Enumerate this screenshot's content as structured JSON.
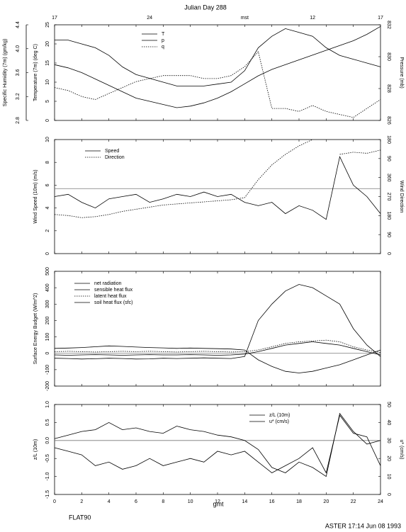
{
  "footer": {
    "left": "FLAT90",
    "right": "ASTER 17:14 Jun 08 1993"
  },
  "chart_data": [
    {
      "type": "line",
      "title": "Julian Day 288",
      "top_xticks": [
        {
          "value": 0,
          "label": "17"
        },
        {
          "value": 7,
          "label": "24"
        },
        {
          "value": 14,
          "label": "mst"
        },
        {
          "value": 19,
          "label": "12"
        },
        {
          "value": 24,
          "label": "17"
        }
      ],
      "xlim": [
        0,
        24
      ],
      "ylabel": "Temperature (7m) (deg C)",
      "ylim": [
        0,
        25
      ],
      "yticks": [
        0,
        5,
        10,
        15,
        20,
        25
      ],
      "y3label": "Specific Humidity (7m) (gm/kg)",
      "y3lim": [
        2.8,
        4.4
      ],
      "y3ticks": [
        2.8,
        3.2,
        3.6,
        {
          "value": 4,
          "label": "4.0"
        },
        4.4
      ],
      "y2label": "Pressure (mb)",
      "y2lim": [
        826,
        832
      ],
      "y2ticks": [
        826,
        828,
        830,
        832
      ],
      "x": [
        0,
        1,
        2,
        3,
        4,
        5,
        6,
        7,
        8,
        9,
        10,
        11,
        12,
        13,
        14,
        15,
        16,
        17,
        18,
        19,
        20,
        21,
        22,
        23,
        24
      ],
      "series": [
        {
          "name": "T",
          "color": "#000",
          "dash": "solid",
          "axis": "y",
          "values": [
            21,
            21,
            20,
            19,
            17,
            14,
            12,
            11,
            10,
            9,
            9,
            9,
            9.5,
            10,
            13,
            19,
            22,
            24,
            23,
            22,
            19,
            17,
            16,
            15,
            14
          ]
        },
        {
          "name": "p",
          "color": "#000",
          "dash": "solid",
          "axis": "y2",
          "values": [
            829.5,
            829.3,
            829,
            828.6,
            828.2,
            827.8,
            827.4,
            827.2,
            827,
            826.8,
            826.9,
            827.1,
            827.4,
            827.8,
            828.3,
            828.8,
            829.2,
            829.5,
            829.8,
            830.1,
            830.4,
            830.7,
            831,
            831.4,
            831.9
          ]
        },
        {
          "name": "q",
          "color": "#000",
          "dash": "dotted",
          "axis": "y3",
          "values": [
            3.35,
            3.3,
            3.2,
            3.15,
            3.25,
            3.35,
            3.45,
            3.5,
            3.55,
            3.55,
            3.55,
            3.5,
            3.5,
            3.55,
            3.7,
            3.95,
            3,
            3,
            2.95,
            3.05,
            2.95,
            2.9,
            2.85,
            3,
            3.15
          ]
        }
      ]
    },
    {
      "type": "line",
      "xlim": [
        0,
        24
      ],
      "ylabel": "Wind Speed (10m) (m/s)",
      "ylim": [
        0,
        10
      ],
      "yticks": [
        0,
        2,
        4,
        6,
        8,
        10
      ],
      "y2label": "Wind Direction",
      "y2lim": [
        0,
        540
      ],
      "y2ticks": [
        0,
        90,
        180,
        270,
        360,
        {
          "value": 450,
          "label": "90"
        },
        {
          "value": 540,
          "label": "180"
        }
      ],
      "hline": 5.7,
      "x": [
        0,
        1,
        2,
        3,
        4,
        5,
        6,
        7,
        8,
        9,
        10,
        11,
        12,
        13,
        14,
        15,
        16,
        17,
        18,
        19,
        20,
        21,
        22,
        23,
        24
      ],
      "series": [
        {
          "name": "Speed",
          "color": "#000",
          "dash": "solid",
          "axis": "y",
          "values": [
            5,
            5.2,
            4.5,
            4,
            4.8,
            5,
            5.2,
            4.5,
            4.8,
            5.2,
            5,
            5.4,
            5,
            5.2,
            4.5,
            4.2,
            4.5,
            3.5,
            4.2,
            3.8,
            3,
            8.5,
            6,
            5,
            3.5
          ]
        },
        {
          "name": "Direction",
          "color": "#000",
          "dash": "dotted",
          "axis": "y2",
          "values": [
            185,
            180,
            170,
            175,
            185,
            200,
            210,
            220,
            230,
            235,
            240,
            245,
            250,
            255,
            265,
            350,
            420,
            470,
            510,
            540,
            null,
            470,
            480,
            475,
            490
          ]
        }
      ]
    },
    {
      "type": "line",
      "xlim": [
        0,
        24
      ],
      "ylabel": "Surface Energy Budget (W/m^2)",
      "ylim": [
        -200,
        500
      ],
      "yticks": [
        -200,
        -100,
        0,
        100,
        200,
        300,
        400,
        500
      ],
      "hline": 0,
      "x": [
        0,
        1,
        2,
        3,
        4,
        5,
        6,
        7,
        8,
        9,
        10,
        11,
        12,
        13,
        14,
        15,
        16,
        17,
        18,
        19,
        20,
        21,
        22,
        23,
        24
      ],
      "series": [
        {
          "name": "net radiation",
          "color": "#000",
          "dash": "solid",
          "axis": "y",
          "values": [
            -30,
            -32,
            -35,
            -33,
            -30,
            -32,
            -35,
            -34,
            -30,
            -32,
            -30,
            -28,
            -30,
            -32,
            -20,
            200,
            300,
            380,
            420,
            400,
            350,
            300,
            150,
            50,
            -20
          ]
        },
        {
          "name": "sensible heat flux",
          "color": "#000",
          "dash": "solid",
          "axis": "y",
          "values": [
            -10,
            -12,
            -10,
            -8,
            -10,
            -12,
            -10,
            -8,
            -10,
            -10,
            -8,
            -10,
            -12,
            -10,
            -5,
            10,
            30,
            50,
            60,
            70,
            60,
            50,
            30,
            10,
            -10
          ]
        },
        {
          "name": "latent heat flux",
          "color": "#000",
          "dash": "dotted",
          "axis": "y",
          "values": [
            10,
            12,
            10,
            8,
            10,
            12,
            10,
            12,
            10,
            8,
            10,
            12,
            10,
            8,
            10,
            20,
            40,
            60,
            70,
            75,
            80,
            70,
            40,
            20,
            5
          ]
        },
        {
          "name": "soil heat flux (sfc)",
          "color": "#000",
          "dash": "solid",
          "axis": "y",
          "values": [
            30,
            32,
            35,
            40,
            45,
            42,
            38,
            35,
            33,
            30,
            32,
            30,
            28,
            26,
            20,
            -40,
            -80,
            -110,
            -120,
            -110,
            -90,
            -70,
            -40,
            -10,
            20
          ]
        }
      ]
    },
    {
      "type": "line",
      "xlim": [
        0,
        24
      ],
      "xlabel": "gmt",
      "xticks": [
        0,
        2,
        4,
        6,
        8,
        10,
        12,
        14,
        16,
        18,
        20,
        22,
        24
      ],
      "ylabel": "z/L (10m)",
      "ylim": [
        -1.5,
        1
      ],
      "yticks": [
        -1.5,
        {
          "value": -1,
          "label": "-1.0"
        },
        -0.5,
        {
          "value": 0,
          "label": "0.0"
        },
        0.5,
        {
          "value": 1,
          "label": "1.0"
        }
      ],
      "y2label": "u* (cm/s)",
      "y2lim": [
        0,
        50
      ],
      "y2ticks": [
        0,
        10,
        20,
        30,
        40,
        50
      ],
      "hline": 0,
      "x": [
        0,
        1,
        2,
        3,
        4,
        5,
        6,
        7,
        8,
        9,
        10,
        11,
        12,
        13,
        14,
        15,
        16,
        17,
        18,
        19,
        20,
        21,
        22,
        23,
        24
      ],
      "series": [
        {
          "name": "z/L (10m)",
          "color": "#000",
          "dash": "solid",
          "axis": "y",
          "values": [
            -0.2,
            -0.3,
            -0.4,
            -0.7,
            -0.6,
            -0.8,
            -0.7,
            -0.5,
            -0.7,
            -0.6,
            -0.5,
            -0.6,
            -0.3,
            -0.4,
            -0.3,
            -0.6,
            -0.9,
            -0.7,
            -0.5,
            -0.2,
            -0.9,
            0.7,
            0.2,
            0.1,
            -0.7
          ]
        },
        {
          "name": "u* (cm/s)",
          "color": "#000",
          "dash": "solid",
          "axis": "y2",
          "values": [
            31,
            33,
            35,
            36,
            40,
            36,
            37,
            35,
            34,
            38,
            36,
            35,
            33,
            32,
            30,
            25,
            15,
            12,
            18,
            15,
            10,
            45,
            35,
            28,
            30
          ]
        }
      ]
    }
  ]
}
